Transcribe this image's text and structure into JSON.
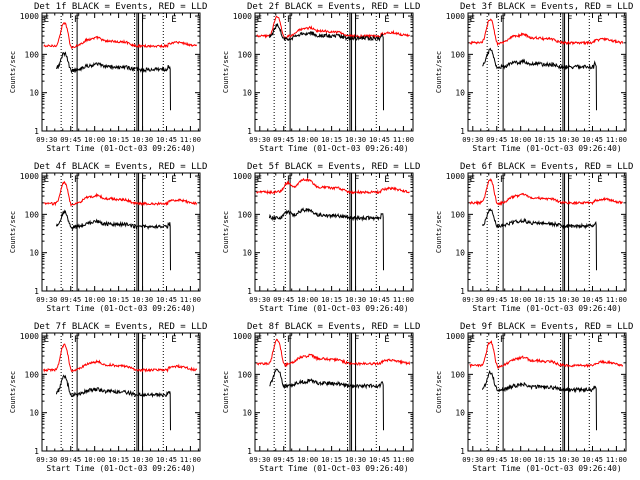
{
  "chart_data": {
    "type": "line",
    "panel_title_suffix": "BLACK = Events, RED = LLD",
    "xlabel": "Start Time (01-Oct-03 09:26:40)",
    "ylabel": "Counts/sec",
    "x_tick_labels": [
      "09:30",
      "09:45",
      "10:00",
      "10:15",
      "10:30",
      "10:45",
      "11:00"
    ],
    "x_tick_minutes": [
      570,
      585,
      600,
      615,
      630,
      645,
      660
    ],
    "xlim_minutes": [
      567,
      666
    ],
    "y_tick_labels": [
      "1",
      "10",
      "100",
      "1000"
    ],
    "y_tick_values": [
      1,
      10,
      100,
      1000
    ],
    "ylim": [
      1,
      1200
    ],
    "yscale": "log",
    "series_colors": {
      "events": "#000000",
      "lld": "#ff0000"
    },
    "vertical_lines_minutes": {
      "dotted": [
        579,
        586,
        625,
        643
      ],
      "solid": [
        589,
        626.5,
        627.5,
        630
      ]
    },
    "markers": [
      {
        "letter": "E",
        "minute": 568
      },
      {
        "letter": "F",
        "minute": 587
      },
      {
        "letter": "F",
        "minute": 629
      },
      {
        "letter": "E",
        "minute": 648
      }
    ],
    "panels": [
      {
        "detector": "Det 1f",
        "lld_base": 165,
        "events_base": 32,
        "flare_peak": 4.0
      },
      {
        "detector": "Det 2f",
        "lld_base": 300,
        "events_base": 210,
        "flare_peak": 3.2
      },
      {
        "detector": "Det 3f",
        "lld_base": 200,
        "events_base": 38,
        "flare_peak": 4.2
      },
      {
        "detector": "Det 4f",
        "lld_base": 190,
        "events_base": 38,
        "flare_peak": 3.6
      },
      {
        "detector": "Det 5f",
        "lld_base": 380,
        "events_base": 65,
        "flare_peak": 1.8
      },
      {
        "detector": "Det 6f",
        "lld_base": 200,
        "events_base": 40,
        "flare_peak": 4.0
      },
      {
        "detector": "Det 7f",
        "lld_base": 130,
        "events_base": 24,
        "flare_peak": 4.5
      },
      {
        "detector": "Det 8f",
        "lld_base": 190,
        "events_base": 40,
        "flare_peak": 4.2
      },
      {
        "detector": "Det 9f",
        "lld_base": 170,
        "events_base": 32,
        "flare_peak": 4.2
      }
    ]
  }
}
